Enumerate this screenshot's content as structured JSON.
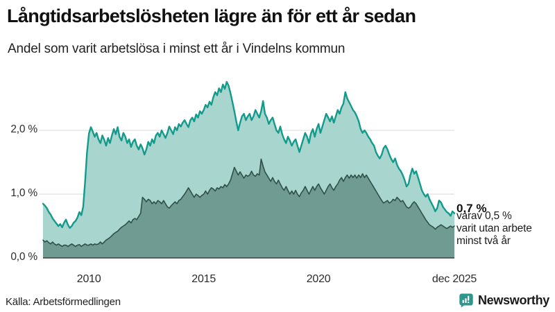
{
  "chart_data": {
    "type": "area",
    "title": "Långtidsarbetslösheten lägre än för ett år sedan",
    "subtitle": "Andel som varit arbetslösa i minst ett år i Vindelns kommun",
    "xlabel": "",
    "ylabel": "",
    "grid": "horizontal",
    "legend_position": "none",
    "ylim": [
      0,
      2.9
    ],
    "x_range_years": [
      2008.0,
      2025.92
    ],
    "y_ticks": [
      {
        "label": "0,0 %",
        "value": 0
      },
      {
        "label": "1,0 %",
        "value": 1
      },
      {
        "label": "2,0 %",
        "value": 2
      }
    ],
    "x_ticks": [
      {
        "label": "2010",
        "year": 2010.0
      },
      {
        "label": "2015",
        "year": 2015.0
      },
      {
        "label": "2020",
        "year": 2020.0
      },
      {
        "label": "dec 2025",
        "year": 2025.92
      }
    ],
    "series": [
      {
        "name": "Arbetslösa minst ett år",
        "line_color": "#129a8b",
        "fill_color": "#a8d5ce",
        "line_width": 2.4,
        "unit": "%",
        "start": "jan 2008",
        "end": "dec 2025",
        "last_value": 0.7,
        "values": [
          0.85,
          0.82,
          0.78,
          0.72,
          0.68,
          0.62,
          0.58,
          0.54,
          0.5,
          0.53,
          0.48,
          0.55,
          0.6,
          0.52,
          0.47,
          0.5,
          0.55,
          0.58,
          0.63,
          0.72,
          0.67,
          0.8,
          1.2,
          1.65,
          1.95,
          2.05,
          1.98,
          1.9,
          1.96,
          1.86,
          1.8,
          1.92,
          1.85,
          1.76,
          1.88,
          1.8,
          1.92,
          2.02,
          1.94,
          2.05,
          1.9,
          1.84,
          1.96,
          1.9,
          1.8,
          1.86,
          1.74,
          1.82,
          1.86,
          1.76,
          1.7,
          1.78,
          1.72,
          1.62,
          1.7,
          1.82,
          1.76,
          1.86,
          1.8,
          1.92,
          1.96,
          1.9,
          2.0,
          1.94,
          1.88,
          1.96,
          2.06,
          2.0,
          1.94,
          2.05,
          2.0,
          2.1,
          2.06,
          2.12,
          2.16,
          2.1,
          2.05,
          2.16,
          2.2,
          2.14,
          2.25,
          2.2,
          2.3,
          2.26,
          2.32,
          2.4,
          2.36,
          2.45,
          2.4,
          2.52,
          2.6,
          2.55,
          2.66,
          2.6,
          2.72,
          2.65,
          2.76,
          2.7,
          2.58,
          2.44,
          2.3,
          2.14,
          2.0,
          2.12,
          2.22,
          2.26,
          2.16,
          2.22,
          2.26,
          2.16,
          2.22,
          2.32,
          2.26,
          2.2,
          2.3,
          2.46,
          2.26,
          2.2,
          2.1,
          2.16,
          2.2,
          2.1,
          2.0,
          1.96,
          2.06,
          1.94,
          1.86,
          1.8,
          1.9,
          1.84,
          1.76,
          1.82,
          1.86,
          1.76,
          1.66,
          1.76,
          1.86,
          1.96,
          1.9,
          1.8,
          1.95,
          2.02,
          1.9,
          2.02,
          2.1,
          1.96,
          2.06,
          2.16,
          2.26,
          2.2,
          2.14,
          2.22,
          2.12,
          2.22,
          2.32,
          2.26,
          2.36,
          2.42,
          2.6,
          2.5,
          2.44,
          2.38,
          2.32,
          2.28,
          2.22,
          2.14,
          2.02,
          1.96,
          2.0,
          1.96,
          1.9,
          1.86,
          1.8,
          1.76,
          1.66,
          1.6,
          1.56,
          1.62,
          1.72,
          1.76,
          1.7,
          1.62,
          1.55,
          1.5,
          1.56,
          1.46,
          1.4,
          1.36,
          1.3,
          1.22,
          1.12,
          1.16,
          1.3,
          1.4,
          1.32,
          1.36,
          1.26,
          1.16,
          1.06,
          1.0,
          0.96,
          1.0,
          0.92,
          0.86,
          0.8,
          0.73,
          0.78,
          0.9,
          0.87,
          0.8,
          0.76,
          0.72,
          0.7,
          0.66,
          0.73,
          0.7
        ]
      },
      {
        "name": "Arbetslösa minst två år",
        "line_color": "#2f5049",
        "fill_color": "#6f9b93",
        "line_width": 1.6,
        "unit": "%",
        "start": "jan 2008",
        "end": "dec 2025",
        "last_value": 0.5,
        "values": [
          0.28,
          0.25,
          0.27,
          0.24,
          0.22,
          0.25,
          0.22,
          0.2,
          0.22,
          0.2,
          0.18,
          0.2,
          0.2,
          0.18,
          0.2,
          0.22,
          0.2,
          0.18,
          0.2,
          0.21,
          0.18,
          0.2,
          0.22,
          0.2,
          0.2,
          0.22,
          0.2,
          0.22,
          0.21,
          0.22,
          0.25,
          0.22,
          0.25,
          0.28,
          0.3,
          0.32,
          0.35,
          0.38,
          0.4,
          0.42,
          0.45,
          0.48,
          0.5,
          0.52,
          0.55,
          0.58,
          0.55,
          0.6,
          0.62,
          0.6,
          0.65,
          0.7,
          0.95,
          0.92,
          0.88,
          0.92,
          0.9,
          0.85,
          0.88,
          0.85,
          0.9,
          0.88,
          0.85,
          0.9,
          0.85,
          0.8,
          0.78,
          0.82,
          0.85,
          0.88,
          0.85,
          0.9,
          0.92,
          0.96,
          1.0,
          1.05,
          1.1,
          1.05,
          1.0,
          0.95,
          1.0,
          0.98,
          0.95,
          0.98,
          1.0,
          1.05,
          1.0,
          1.06,
          1.1,
          1.08,
          1.05,
          1.1,
          1.08,
          1.12,
          1.1,
          1.15,
          1.12,
          1.16,
          1.22,
          1.32,
          1.42,
          1.36,
          1.3,
          1.35,
          1.3,
          1.25,
          1.3,
          1.28,
          1.3,
          1.36,
          1.3,
          1.28,
          1.32,
          1.3,
          1.55,
          1.44,
          1.35,
          1.3,
          1.25,
          1.2,
          1.26,
          1.2,
          1.16,
          1.22,
          1.16,
          1.1,
          1.06,
          1.12,
          1.06,
          1.0,
          1.05,
          1.0,
          1.06,
          1.0,
          0.96,
          1.02,
          1.06,
          1.12,
          1.06,
          1.0,
          1.06,
          1.12,
          1.06,
          1.12,
          1.16,
          1.1,
          1.05,
          1.0,
          1.06,
          1.12,
          1.16,
          1.1,
          1.06,
          1.12,
          1.16,
          1.22,
          1.26,
          1.2,
          1.26,
          1.3,
          1.25,
          1.3,
          1.26,
          1.3,
          1.25,
          1.3,
          1.26,
          1.32,
          1.26,
          1.3,
          1.25,
          1.2,
          1.15,
          1.1,
          1.05,
          1.0,
          0.95,
          0.9,
          0.86,
          0.88,
          0.9,
          0.86,
          0.88,
          0.92,
          0.9,
          0.95,
          0.92,
          0.88,
          0.9,
          0.85,
          0.8,
          0.78,
          0.8,
          0.85,
          0.88,
          0.85,
          0.8,
          0.75,
          0.7,
          0.65,
          0.6,
          0.56,
          0.52,
          0.5,
          0.48,
          0.45,
          0.48,
          0.5,
          0.52,
          0.5,
          0.48,
          0.46,
          0.48,
          0.5,
          0.48,
          0.5
        ]
      }
    ],
    "annotation": {
      "value_label": "0,7 %",
      "lines": [
        "varav 0,5 %",
        "varit utan arbete",
        "minst två år"
      ]
    }
  },
  "footer": {
    "source": "Källa: Arbetsförmedlingen",
    "brand": "Newsworthy"
  },
  "colors": {
    "gridline": "#d9d9d9",
    "baseline": "#3f3f3f",
    "brand_teal": "#2e968d",
    "text": "#1a1a1a"
  }
}
